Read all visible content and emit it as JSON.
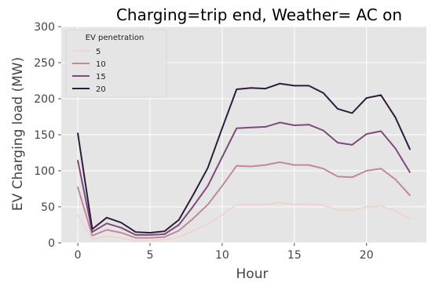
{
  "chart_data": {
    "type": "line",
    "title": "Charging=trip end, Weather= AC on",
    "xlabel": "Hour",
    "ylabel": "EV Charging load (MW)",
    "xlim": [
      -1.15,
      24.15
    ],
    "ylim": [
      0,
      300
    ],
    "xticks": [
      0,
      5,
      10,
      15,
      20
    ],
    "yticks": [
      0,
      50,
      100,
      150,
      200,
      250,
      300
    ],
    "grid": true,
    "legend": {
      "title": "EV penetration",
      "placement": "top-left"
    },
    "x": [
      0,
      1,
      2,
      3,
      4,
      5,
      6,
      7,
      8,
      9,
      10,
      11,
      12,
      13,
      14,
      15,
      16,
      17,
      18,
      19,
      20,
      21,
      22,
      23
    ],
    "series": [
      {
        "name": "5",
        "color": "#ecd5d2",
        "values": [
          38,
          5,
          9,
          7,
          3,
          3,
          4,
          8,
          17,
          26,
          39,
          53,
          53,
          53,
          56,
          53,
          54,
          52,
          46,
          45,
          50,
          51,
          44,
          33
        ]
      },
      {
        "name": "10",
        "color": "#c2879c",
        "values": [
          77,
          10,
          18,
          14,
          7,
          7,
          8,
          17,
          34,
          53,
          79,
          107,
          106,
          108,
          112,
          108,
          108,
          103,
          92,
          91,
          100,
          103,
          88,
          66
        ]
      },
      {
        "name": "15",
        "color": "#7d4a7b",
        "values": [
          114,
          15,
          27,
          21,
          11,
          11,
          12,
          25,
          51,
          79,
          119,
          159,
          160,
          161,
          167,
          163,
          164,
          156,
          139,
          136,
          151,
          155,
          131,
          98
        ]
      },
      {
        "name": "20",
        "color": "#2d1d3a",
        "values": [
          152,
          19,
          35,
          28,
          15,
          14,
          16,
          32,
          67,
          104,
          159,
          213,
          215,
          214,
          221,
          218,
          218,
          208,
          186,
          180,
          201,
          205,
          174,
          130
        ]
      }
    ],
    "colors": {
      "plot_background": "#e5e5e5",
      "grid": "#ffffff",
      "tick_text": "#444444"
    }
  }
}
